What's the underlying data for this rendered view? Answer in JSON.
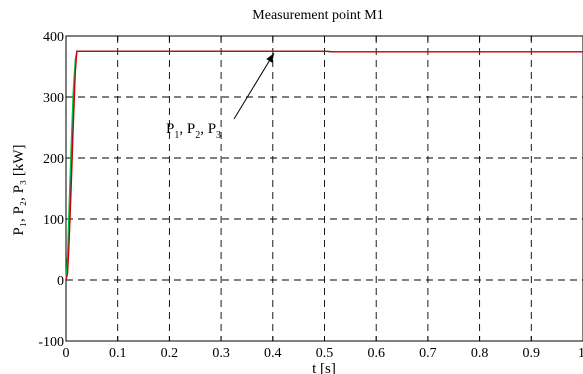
{
  "chart_data": {
    "type": "line",
    "title": "Measurement point M1",
    "xlabel": "t [s]",
    "ylabel": "P₁, P₂, P₃ [kW]",
    "xlim": [
      0,
      1
    ],
    "ylim": [
      -100,
      400
    ],
    "xticks": [
      0,
      0.1,
      0.2,
      0.3,
      0.4,
      0.5,
      0.6,
      0.7,
      0.8,
      0.9,
      1
    ],
    "xtick_labels": [
      "0",
      "0.1",
      "0.2",
      "0.3",
      "0.4",
      "0.5",
      "0.6",
      "0.7",
      "0.8",
      "0.9",
      "1"
    ],
    "yticks": [
      -100,
      0,
      100,
      200,
      300,
      400
    ],
    "ytick_labels": [
      "-100",
      "0",
      "100",
      "200",
      "300",
      "400"
    ],
    "grid": true,
    "annotation": {
      "parts": [
        {
          "main": "P",
          "sub": "1",
          "tail": ", "
        },
        {
          "main": "P",
          "sub": "2",
          "tail": ", "
        },
        {
          "main": "P",
          "sub": "3",
          "tail": ""
        }
      ],
      "arrow_to": [
        0.41,
        375
      ]
    },
    "series": [
      {
        "color": "#1a1aff",
        "x": [
          0,
          0.003,
          0.006,
          0.01,
          0.014,
          0.018,
          0.021,
          0.5,
          0.52,
          1.0
        ],
        "y": [
          0,
          20,
          80,
          170,
          270,
          350,
          375,
          375,
          374,
          374
        ]
      },
      {
        "color": "#00c040",
        "x": [
          0,
          0.003,
          0.006,
          0.01,
          0.014,
          0.018,
          0.021,
          0.5,
          0.52,
          1.0
        ],
        "y": [
          0,
          40,
          120,
          220,
          310,
          362,
          375,
          375,
          374,
          374
        ]
      },
      {
        "color": "#cc0000",
        "x": [
          0,
          0.003,
          0.006,
          0.01,
          0.014,
          0.018,
          0.021,
          0.5,
          0.52,
          1.0
        ],
        "y": [
          0,
          10,
          60,
          150,
          250,
          340,
          375,
          375,
          374,
          374
        ]
      }
    ]
  }
}
